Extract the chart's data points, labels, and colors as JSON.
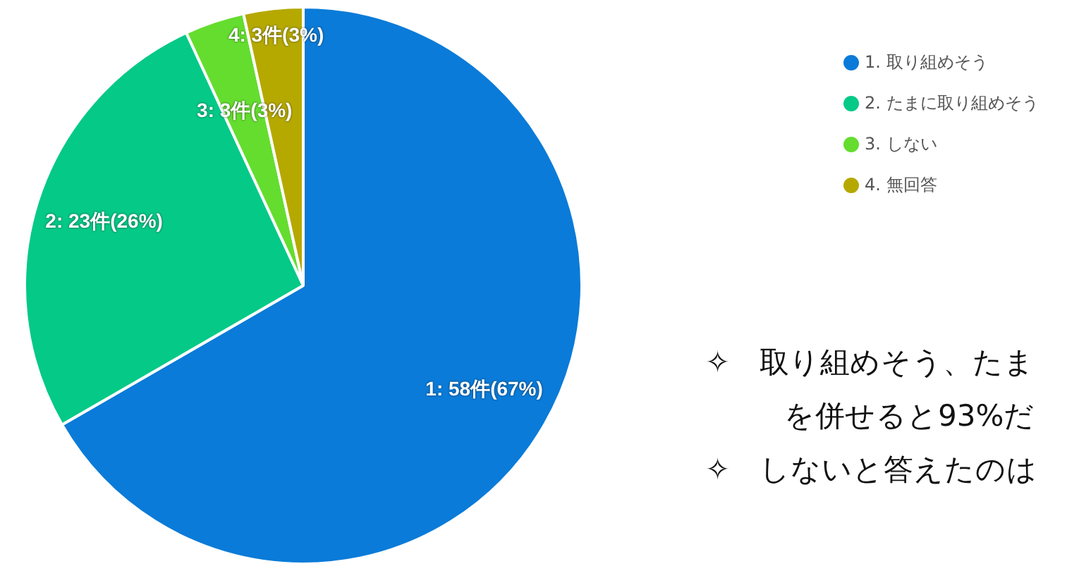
{
  "chart_data": {
    "type": "pie",
    "categories": [
      "1. 取り組めそう",
      "2. たまに取り組めそう",
      "3. しない",
      "4. 無回答"
    ],
    "values": [
      58,
      23,
      3,
      3
    ],
    "colors": [
      "#0a7bd8",
      "#04c987",
      "#64dd2f",
      "#b5a900"
    ],
    "value_labels": [
      "1: 58件(67%)",
      "2: 23件(26%)",
      "3: 3件(3%)",
      "4: 3件(3%)"
    ],
    "legend": "top right",
    "annotations": [
      "✧　取り組めそう、たま",
      "を併せると93%だ",
      "✧　しないと答えたのは"
    ]
  }
}
